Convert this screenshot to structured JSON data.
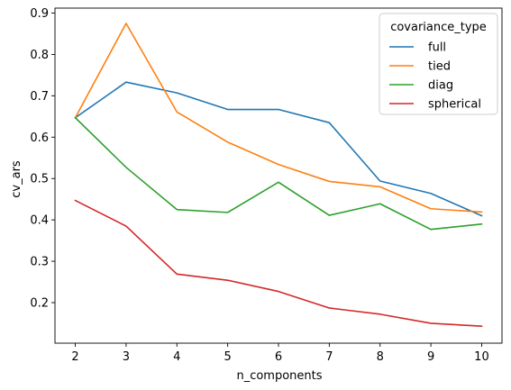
{
  "chart_data": {
    "type": "line",
    "xlabel": "n_components",
    "ylabel": "cv_ars",
    "x": [
      2,
      3,
      4,
      5,
      6,
      7,
      8,
      9,
      10
    ],
    "xticks": [
      "2",
      "3",
      "4",
      "5",
      "6",
      "7",
      "8",
      "9",
      "10"
    ],
    "yticks": [
      "0.2",
      "0.3",
      "0.4",
      "0.5",
      "0.6",
      "0.7",
      "0.8",
      "0.9"
    ],
    "xlim": [
      1.6,
      10.4
    ],
    "ylim": [
      0.102,
      0.912
    ],
    "grid": false,
    "legend_title": "covariance_type",
    "legend_position": "top-right",
    "series": [
      {
        "name": "full",
        "color": "#1f77b4",
        "values": [
          0.647,
          0.733,
          0.707,
          0.667,
          0.667,
          0.635,
          0.494,
          0.464,
          0.41
        ]
      },
      {
        "name": "tied",
        "color": "#ff7f0e",
        "values": [
          0.647,
          0.875,
          0.661,
          0.588,
          0.534,
          0.493,
          0.48,
          0.427,
          0.419
        ]
      },
      {
        "name": "diag",
        "color": "#2ca02c",
        "values": [
          0.647,
          0.527,
          0.425,
          0.418,
          0.491,
          0.411,
          0.439,
          0.377,
          0.39
        ]
      },
      {
        "name": "spherical",
        "color": "#d62728",
        "values": [
          0.447,
          0.385,
          0.269,
          0.254,
          0.227,
          0.187,
          0.172,
          0.15,
          0.143
        ]
      }
    ]
  }
}
